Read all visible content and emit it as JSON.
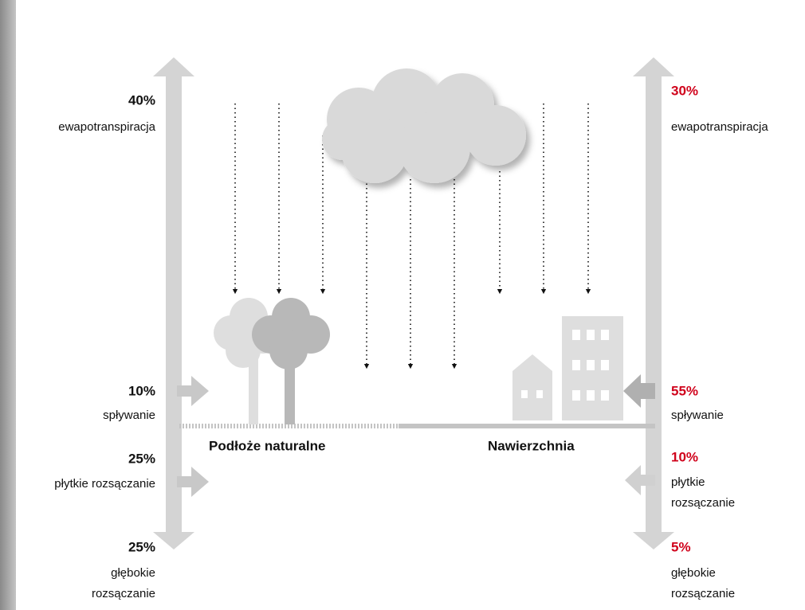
{
  "left": {
    "evapotranspiration": {
      "value": "40%",
      "label": "ewapotranspiracja"
    },
    "runoff": {
      "value": "10%",
      "label": "spływanie"
    },
    "shallow_infiltration": {
      "value": "25%",
      "label": "płytkie rozsączanie"
    },
    "deep_infiltration": {
      "value": "25%",
      "label": [
        "głębokie",
        "rozsączanie"
      ]
    }
  },
  "right": {
    "evapotranspiration": {
      "value": "30%",
      "label": "ewapotranspiracja"
    },
    "runoff": {
      "value": "55%",
      "label": "spływanie"
    },
    "shallow_infiltration": {
      "value": "10%",
      "label": [
        "płytkie",
        "rozsączanie"
      ]
    },
    "deep_infiltration": {
      "value": "5%",
      "label": [
        "głębokie",
        "rozsączanie"
      ]
    }
  },
  "surfaces": {
    "natural": "Podłoże naturalne",
    "paved": "Nawierzchnia"
  }
}
